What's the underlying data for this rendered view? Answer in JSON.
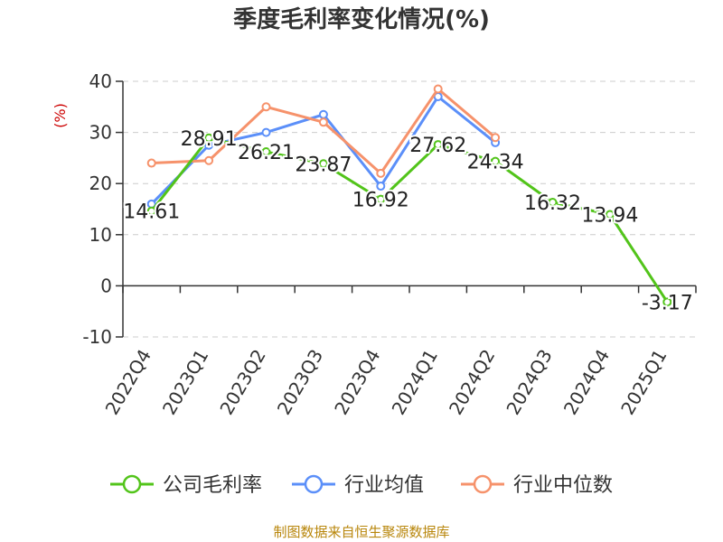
{
  "chart_data": {
    "type": "line",
    "title": "季度毛利率变化情况(%)",
    "unit_label": "(%)",
    "categories": [
      "2022Q4",
      "2023Q1",
      "2023Q2",
      "2023Q3",
      "2023Q4",
      "2024Q1",
      "2024Q2",
      "2024Q3",
      "2024Q4",
      "2025Q1"
    ],
    "ylim": [
      -10,
      40
    ],
    "yticks": [
      40,
      30,
      20,
      10,
      0,
      -10
    ],
    "grid": true,
    "legend_position": "bottom",
    "series": [
      {
        "name": "公司毛利率",
        "color": "#52c41a",
        "values": [
          14.61,
          28.91,
          26.21,
          23.87,
          16.92,
          27.62,
          24.34,
          16.32,
          13.94,
          -3.17
        ],
        "labels": [
          "14.61",
          "28.91",
          "26.21",
          "23.87",
          "16.92",
          "27.62",
          "24.34",
          "16.32",
          "13.94",
          "-3.17"
        ]
      },
      {
        "name": "行业均值",
        "color": "#5b8ff9",
        "values": [
          16.0,
          27.5,
          30.0,
          33.5,
          19.5,
          37.0,
          28.0,
          null,
          null,
          null
        ]
      },
      {
        "name": "行业中位数",
        "color": "#f6926b",
        "values": [
          24.0,
          24.5,
          35.0,
          32.0,
          22.0,
          38.5,
          29.0,
          null,
          null,
          null
        ]
      }
    ],
    "source": "制图数据来自恒生聚源数据库"
  }
}
